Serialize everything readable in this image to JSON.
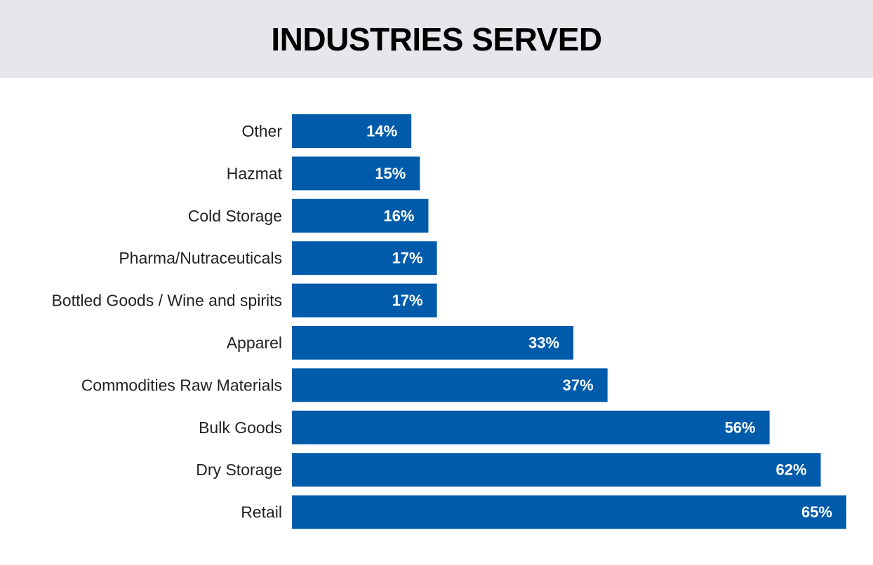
{
  "header": {
    "title": "INDUSTRIES SERVED"
  },
  "colors": {
    "bar": "#005baa",
    "header_bg": "#e6e7eb",
    "value_text": "#ffffff",
    "category_text": "#222222"
  },
  "chart_data": {
    "type": "bar",
    "orientation": "horizontal",
    "title": "INDUSTRIES SERVED",
    "xlabel": "",
    "ylabel": "",
    "grid": false,
    "legend": "none",
    "xlim": [
      0,
      65
    ],
    "categories": [
      "Other",
      "Hazmat",
      "Cold Storage",
      "Pharma/Nutraceuticals",
      "Bottled Goods / Wine and spirits",
      "Apparel",
      "Commodities Raw Materials",
      "Bulk Goods",
      "Dry Storage",
      "Retail"
    ],
    "values": [
      14,
      15,
      16,
      17,
      17,
      33,
      37,
      56,
      62,
      65
    ],
    "value_labels": [
      "14%",
      "15%",
      "16%",
      "17%",
      "17%",
      "33%",
      "37%",
      "56%",
      "62%",
      "65%"
    ]
  }
}
